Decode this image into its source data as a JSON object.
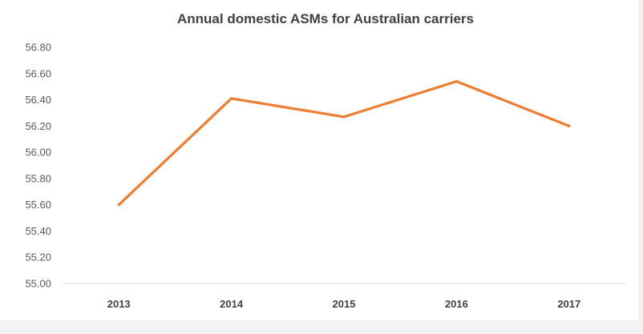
{
  "chart_data": {
    "type": "line",
    "title": "Annual domestic ASMs for Australian carriers",
    "xlabel": "",
    "ylabel": "",
    "categories": [
      "2013",
      "2014",
      "2015",
      "2016",
      "2017"
    ],
    "series": [
      {
        "values": [
          55.6,
          56.41,
          56.27,
          56.54,
          56.2
        ],
        "color": "#ed7d31"
      }
    ],
    "ylim": [
      55.0,
      56.8
    ],
    "y_ticks": [
      "55.00",
      "55.20",
      "55.40",
      "55.60",
      "55.80",
      "56.00",
      "56.20",
      "56.40",
      "56.60",
      "56.80"
    ],
    "grid": false,
    "legend": "none"
  }
}
